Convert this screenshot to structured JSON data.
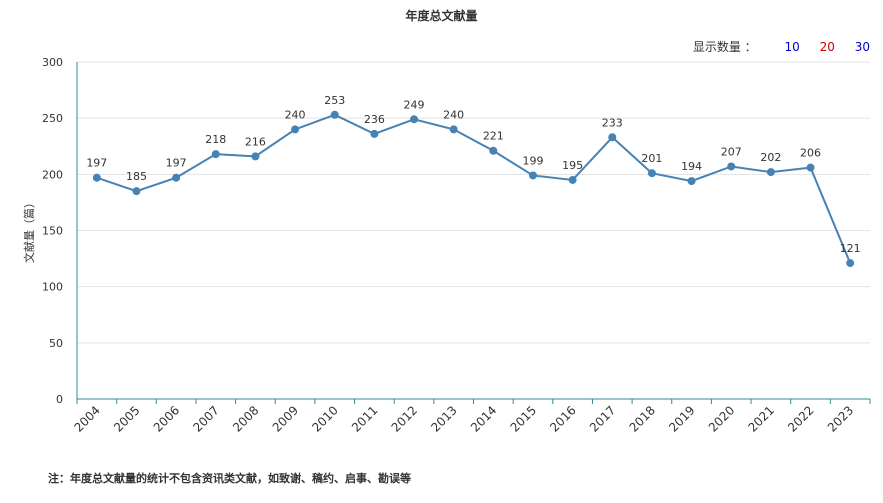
{
  "chart_data": {
    "type": "line",
    "title": "年度总文献量",
    "xlabel": "",
    "ylabel": "文献量（篇）",
    "ylim": [
      0,
      300
    ],
    "yticks": [
      0,
      50,
      100,
      150,
      200,
      250,
      300
    ],
    "grid": true,
    "categories": [
      "2004",
      "2005",
      "2006",
      "2007",
      "2008",
      "2009",
      "2010",
      "2011",
      "2012",
      "2013",
      "2014",
      "2015",
      "2016",
      "2017",
      "2018",
      "2019",
      "2020",
      "2021",
      "2022",
      "2023"
    ],
    "series": [
      {
        "values": [
          197,
          185,
          197,
          218,
          216,
          240,
          253,
          236,
          249,
          240,
          221,
          199,
          195,
          233,
          201,
          194,
          207,
          202,
          206,
          121
        ]
      }
    ]
  },
  "controls": {
    "label": "显示数量 ：",
    "options": [
      {
        "text": "10",
        "color": "#0000cc"
      },
      {
        "text": "20",
        "color": "#cc0000"
      },
      {
        "text": "30",
        "color": "#0000cc"
      }
    ]
  },
  "note": "注：年度总文献量的统计不包含资讯类文献，如致谢、稿约、启事、勘误等",
  "colors": {
    "line": "#4682b4",
    "axis": "#2e8b9a",
    "grid": "#e3e3e3"
  }
}
